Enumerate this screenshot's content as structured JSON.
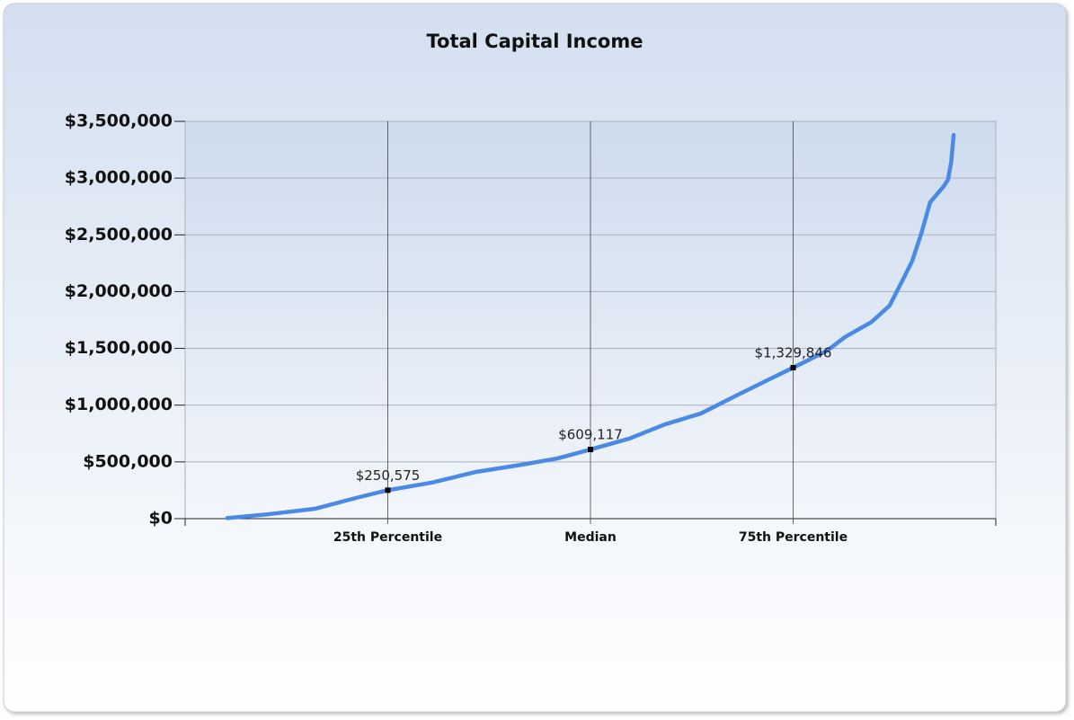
{
  "chart_data": {
    "type": "line",
    "title": "Total Capital Income",
    "x": [
      5.2,
      10.4,
      16,
      21.5,
      25,
      30.4,
      35.9,
      41.5,
      45.9,
      50,
      54.8,
      59.2,
      63.6,
      68,
      72.5,
      75,
      79.2,
      81.4,
      84.7,
      86.9,
      88.6,
      89.7,
      90.8,
      91.9,
      93.6,
      94.1,
      94.5,
      94.8
    ],
    "series": [
      {
        "color": "#4a8ae4",
        "values": [
          5000,
          40000,
          87000,
          190000,
          250575,
          317000,
          412000,
          475000,
          530000,
          609117,
          705000,
          831000,
          926000,
          1085000,
          1243000,
          1329846,
          1480000,
          1600000,
          1734000,
          1877000,
          2114000,
          2272000,
          2510000,
          2787000,
          2930000,
          2985000,
          3143000,
          3380000
        ]
      }
    ],
    "annotations": [
      {
        "x": 25,
        "value": 250575,
        "label": "$250,575"
      },
      {
        "x": 50,
        "value": 609117,
        "label": "$609,117"
      },
      {
        "x": 75,
        "value": 1329846,
        "label": "$1,329,846"
      }
    ],
    "xlim": [
      0,
      100
    ],
    "xticks": [
      {
        "value": 25,
        "label": "25th Percentile"
      },
      {
        "value": 50,
        "label": "Median"
      },
      {
        "value": 75,
        "label": "75th Percentile"
      }
    ],
    "ylim": [
      0,
      3500000
    ],
    "yticks": [
      {
        "value": 0,
        "label": "$0"
      },
      {
        "value": 500000,
        "label": "$500,000"
      },
      {
        "value": 1000000,
        "label": "$1,000,000"
      },
      {
        "value": 1500000,
        "label": "$1,500,000"
      },
      {
        "value": 2000000,
        "label": "$2,000,000"
      },
      {
        "value": 2500000,
        "label": "$2,500,000"
      },
      {
        "value": 3000000,
        "label": "$3,000,000"
      },
      {
        "value": 3500000,
        "label": "$3,500,000"
      }
    ],
    "grid": true
  }
}
